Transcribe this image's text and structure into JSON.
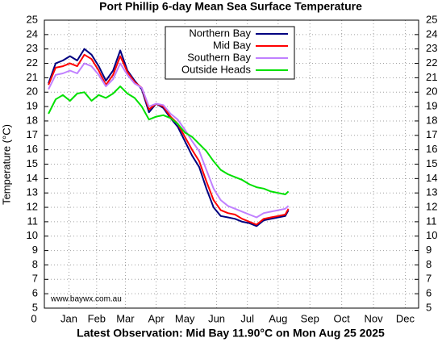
{
  "chart_data": {
    "type": "line",
    "title": "Port Phillip 6-day Mean Sea Surface Temperature",
    "subtitle": "Latest Observation: Mid Bay 11.90°C on Mon Aug 25 2025",
    "annotation": "www.baywx.com.au",
    "ylabel": "Temperature (°C)",
    "x": [
      4,
      11,
      18,
      25,
      32,
      39,
      46,
      53,
      60,
      67,
      74,
      81,
      88,
      95,
      102,
      109,
      116,
      123,
      130,
      137,
      144,
      151,
      158,
      165,
      172,
      179,
      186,
      193,
      200,
      207,
      214,
      221,
      228,
      235,
      238
    ],
    "series": [
      {
        "name": "Northern Bay",
        "color": "#000080",
        "values": [
          20.6,
          22.0,
          22.2,
          22.5,
          22.2,
          23.0,
          22.6,
          21.8,
          20.8,
          21.5,
          22.9,
          21.5,
          20.8,
          20.2,
          18.6,
          19.2,
          18.9,
          18.2,
          17.6,
          16.6,
          15.6,
          14.8,
          13.3,
          12.0,
          11.4,
          11.3,
          11.2,
          11.0,
          10.9,
          10.7,
          11.1,
          11.2,
          11.3,
          11.4,
          11.8
        ]
      },
      {
        "name": "Mid Bay",
        "color": "#ff0000",
        "values": [
          20.5,
          21.7,
          21.8,
          22.0,
          21.8,
          22.6,
          22.3,
          21.5,
          20.5,
          21.2,
          22.5,
          21.4,
          20.7,
          20.3,
          18.8,
          19.2,
          19.0,
          18.3,
          17.8,
          16.9,
          16.0,
          15.2,
          13.8,
          12.5,
          11.8,
          11.6,
          11.5,
          11.2,
          11.0,
          10.8,
          11.2,
          11.3,
          11.4,
          11.5,
          11.9
        ]
      },
      {
        "name": "Southern Bay",
        "color": "#c080ff",
        "values": [
          20.2,
          21.2,
          21.3,
          21.5,
          21.3,
          22.0,
          21.8,
          21.2,
          20.4,
          20.9,
          22.0,
          21.2,
          20.6,
          20.3,
          19.0,
          19.2,
          19.1,
          18.5,
          18.1,
          17.4,
          16.6,
          15.9,
          14.6,
          13.3,
          12.5,
          12.1,
          11.9,
          11.7,
          11.5,
          11.3,
          11.6,
          11.7,
          11.8,
          11.9,
          12.1
        ]
      },
      {
        "name": "Outside Heads",
        "color": "#00e000",
        "values": [
          18.5,
          19.5,
          19.8,
          19.4,
          19.9,
          20.0,
          19.4,
          19.8,
          19.6,
          19.9,
          20.4,
          19.9,
          19.6,
          19.0,
          18.1,
          18.3,
          18.4,
          18.2,
          17.8,
          17.2,
          16.9,
          16.4,
          15.9,
          15.2,
          14.6,
          14.3,
          14.1,
          13.9,
          13.6,
          13.4,
          13.3,
          13.1,
          13.0,
          12.9,
          13.1
        ]
      }
    ],
    "xlim": [
      0,
      365
    ],
    "xticks": [
      0,
      {
        "value": 24,
        "label": "Jan"
      },
      {
        "value": 51,
        "label": "Feb"
      },
      {
        "value": 79,
        "label": "Mar"
      },
      {
        "value": 109,
        "label": "Apr"
      },
      {
        "value": 137,
        "label": "May"
      },
      {
        "value": 168,
        "label": "Jun"
      },
      {
        "value": 198,
        "label": "Jul"
      },
      {
        "value": 228,
        "label": "Aug"
      },
      {
        "value": 259,
        "label": "Sep"
      },
      {
        "value": 290,
        "label": "Oct"
      },
      {
        "value": 321,
        "label": "Nov"
      },
      {
        "value": 352,
        "label": "Dec"
      }
    ],
    "ylim": [
      5,
      25
    ],
    "yticks": [
      5,
      6,
      7,
      8,
      9,
      10,
      11,
      12,
      13,
      14,
      15,
      16,
      17,
      18,
      19,
      20,
      21,
      22,
      23,
      24,
      25
    ],
    "grid": true,
    "legend": "top"
  }
}
